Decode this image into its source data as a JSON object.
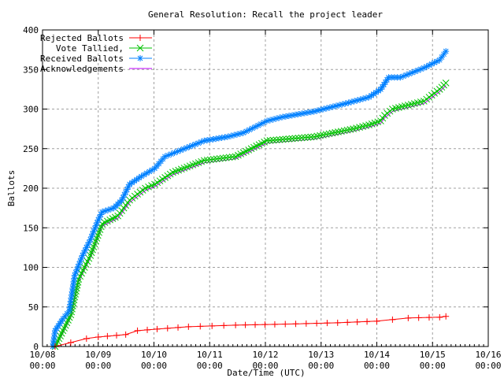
{
  "chart_data": {
    "type": "line",
    "title": "General Resolution: Recall the project leader",
    "xlabel": "Date/Time (UTC)",
    "ylabel": "Ballots",
    "ylim": [
      0,
      400
    ],
    "yticks": [
      "0",
      "50",
      "100",
      "150",
      "200",
      "250",
      "300",
      "350",
      "400"
    ],
    "xticks": [
      {
        "date": "10/08",
        "time": "00:00"
      },
      {
        "date": "10/09",
        "time": "00:00"
      },
      {
        "date": "10/10",
        "time": "00:00"
      },
      {
        "date": "10/11",
        "time": "00:00"
      },
      {
        "date": "10/12",
        "time": "00:00"
      },
      {
        "date": "10/13",
        "time": "00:00"
      },
      {
        "date": "10/14",
        "time": "00:00"
      },
      {
        "date": "10/15",
        "time": "00:00"
      },
      {
        "date": "10/16",
        "time": "00:00"
      }
    ],
    "xlim": [
      "10/08 00:00",
      "10/16 00:00"
    ],
    "grid": true,
    "legend_position": "top-left",
    "series": [
      {
        "name": "Rejected Ballots",
        "color": "#ff0000",
        "marker": "plus",
        "points": [
          [
            "10/08 05:25",
            0
          ],
          [
            "10/08 12:10",
            5
          ],
          [
            "10/08 18:56",
            10
          ],
          [
            "10/09 00:00",
            12
          ],
          [
            "10/09 11:50",
            15
          ],
          [
            "10/09 16:54",
            20
          ],
          [
            "10/10 01:21",
            22
          ],
          [
            "10/10 14:52",
            25
          ],
          [
            "10/11 11:09",
            27
          ],
          [
            "10/12 04:03",
            28
          ],
          [
            "10/13 07:07",
            30
          ],
          [
            "10/14 00:00",
            32
          ],
          [
            "10/14 06:45",
            34
          ],
          [
            "10/14 13:31",
            36
          ],
          [
            "10/15 03:04",
            37
          ],
          [
            "10/15 05:45",
            38
          ]
        ]
      },
      {
        "name": "Vote Tallied,",
        "color": "#00c000",
        "marker": "cross",
        "points": [
          [
            "10/08 05:25",
            0
          ],
          [
            "10/08 08:47",
            20
          ],
          [
            "10/08 12:10",
            40
          ],
          [
            "10/08 15:33",
            85
          ],
          [
            "10/08 20:37",
            115
          ],
          [
            "10/09 01:41",
            155
          ],
          [
            "10/09 08:27",
            165
          ],
          [
            "10/09 13:31",
            185
          ],
          [
            "10/09 20:17",
            200
          ],
          [
            "10/10 00:20",
            205
          ],
          [
            "10/10 08:07",
            220
          ],
          [
            "10/10 21:38",
            235
          ],
          [
            "10/11 11:09",
            240
          ],
          [
            "10/11 17:55",
            250
          ],
          [
            "10/12 00:40",
            260
          ],
          [
            "10/12 21:00",
            265
          ],
          [
            "10/13 13:52",
            275
          ],
          [
            "10/13 20:37",
            280
          ],
          [
            "10/14 01:41",
            285
          ],
          [
            "10/14 03:22",
            292
          ],
          [
            "10/14 06:45",
            300
          ],
          [
            "10/14 20:17",
            310
          ],
          [
            "10/15 03:04",
            325
          ],
          [
            "10/15 05:45",
            333
          ]
        ]
      },
      {
        "name": "Received Ballots",
        "color": "#0080ff",
        "marker": "star",
        "points": [
          [
            "10/08 04:24",
            0
          ],
          [
            "10/08 05:25",
            20
          ],
          [
            "10/08 08:47",
            35
          ],
          [
            "10/08 11:30",
            45
          ],
          [
            "10/08 13:51",
            90
          ],
          [
            "10/08 17:14",
            115
          ],
          [
            "10/08 20:37",
            135
          ],
          [
            "10/09 00:00",
            160
          ],
          [
            "10/09 01:41",
            170
          ],
          [
            "10/09 06:46",
            175
          ],
          [
            "10/09 10:08",
            185
          ],
          [
            "10/09 13:31",
            205
          ],
          [
            "10/09 18:35",
            215
          ],
          [
            "10/10 00:20",
            225
          ],
          [
            "10/10 04:44",
            240
          ],
          [
            "10/10 11:30",
            248
          ],
          [
            "10/10 21:38",
            260
          ],
          [
            "10/11 07:46",
            265
          ],
          [
            "10/11 14:32",
            270
          ],
          [
            "10/12 00:40",
            285
          ],
          [
            "10/12 07:26",
            290
          ],
          [
            "10/12 21:00",
            297
          ],
          [
            "10/13 10:29",
            307
          ],
          [
            "10/13 20:37",
            315
          ],
          [
            "10/14 01:41",
            325
          ],
          [
            "10/14 05:04",
            340
          ],
          [
            "10/14 10:08",
            340
          ],
          [
            "10/14 20:17",
            352
          ],
          [
            "10/15 03:04",
            362
          ],
          [
            "10/15 05:45",
            373
          ]
        ]
      },
      {
        "name": "Acknowledgements",
        "color": "#c000ff",
        "marker": "none",
        "points": [
          [
            "10/08 05:25",
            0
          ],
          [
            "10/08 08:47",
            17
          ],
          [
            "10/08 12:10",
            37
          ],
          [
            "10/08 15:33",
            82
          ],
          [
            "10/08 20:37",
            112
          ],
          [
            "10/09 01:41",
            152
          ],
          [
            "10/09 08:27",
            162
          ],
          [
            "10/09 13:31",
            182
          ],
          [
            "10/09 20:17",
            197
          ],
          [
            "10/10 00:20",
            202
          ],
          [
            "10/10 08:07",
            217
          ],
          [
            "10/10 21:38",
            232
          ],
          [
            "10/11 11:09",
            237
          ],
          [
            "10/11 17:55",
            247
          ],
          [
            "10/12 00:40",
            257
          ],
          [
            "10/12 21:00",
            262
          ],
          [
            "10/13 13:52",
            272
          ],
          [
            "10/13 20:37",
            277
          ],
          [
            "10/14 01:41",
            282
          ],
          [
            "10/14 03:22",
            289
          ],
          [
            "10/14 06:45",
            297
          ],
          [
            "10/14 20:17",
            307
          ],
          [
            "10/15 03:04",
            322
          ],
          [
            "10/15 05:45",
            330
          ]
        ]
      }
    ]
  }
}
